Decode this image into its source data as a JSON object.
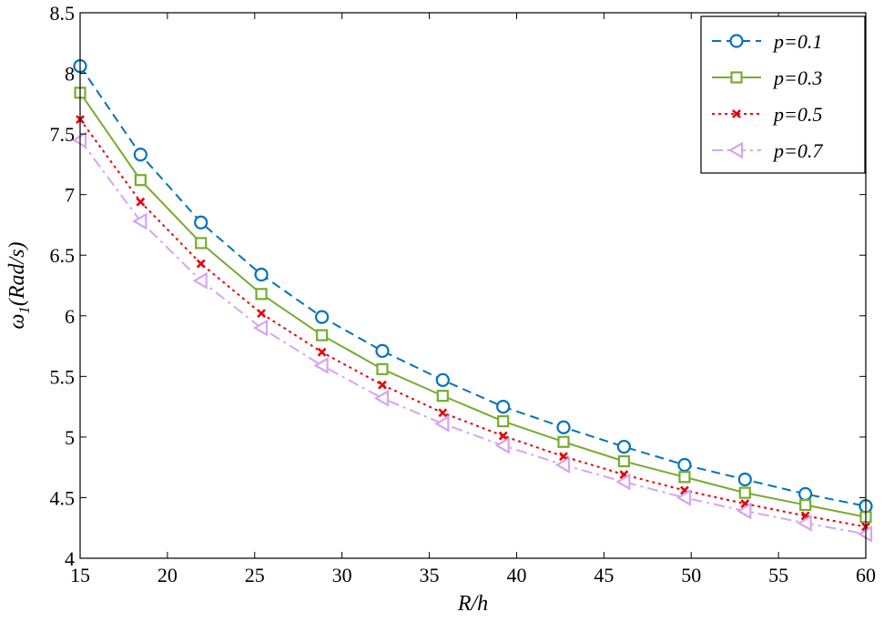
{
  "chart_data": {
    "type": "line",
    "xlabel": "R/h",
    "ylabel": "ω",
    "ylabel_sub": "1",
    "ylabel_unit": "(Rad/s)",
    "xlim": [
      15,
      60
    ],
    "ylim": [
      4,
      8.5
    ],
    "xticks": [
      15,
      20,
      25,
      30,
      35,
      40,
      45,
      50,
      55,
      60
    ],
    "yticks": [
      4,
      4.5,
      5,
      5.5,
      6,
      6.5,
      7,
      7.5,
      8,
      8.5
    ],
    "ytick_labels": [
      "4",
      "4.5",
      "5",
      "5.5",
      "6",
      "6.5",
      "7",
      "7.5",
      "8",
      "8.5"
    ],
    "grid": false,
    "legend_position": "top-right",
    "x": [
      15,
      18.46,
      21.92,
      25.38,
      28.85,
      32.31,
      35.77,
      39.23,
      42.69,
      46.15,
      49.62,
      53.08,
      56.54,
      60
    ],
    "series": [
      {
        "name": "p=0.1",
        "color": "#0072BD",
        "dash": "dashed",
        "marker": "circle",
        "values": [
          8.06,
          7.33,
          6.77,
          6.34,
          5.99,
          5.71,
          5.47,
          5.25,
          5.08,
          4.92,
          4.77,
          4.65,
          4.53,
          4.43
        ]
      },
      {
        "name": "p=0.3",
        "color": "#77AC30",
        "dash": "solid",
        "marker": "square",
        "values": [
          7.84,
          7.12,
          6.6,
          6.18,
          5.84,
          5.56,
          5.34,
          5.13,
          4.96,
          4.8,
          4.67,
          4.54,
          4.44,
          4.34
        ]
      },
      {
        "name": "p=0.5",
        "color": "#E8000B",
        "dash": "dotted",
        "marker": "x",
        "values": [
          7.62,
          6.94,
          6.43,
          6.02,
          5.7,
          5.43,
          5.2,
          5.01,
          4.84,
          4.69,
          4.56,
          4.45,
          4.35,
          4.26
        ]
      },
      {
        "name": "p=0.7",
        "color": "#D7A5EE",
        "dash": "dashdot",
        "marker": "triangle-left",
        "values": [
          7.45,
          6.78,
          6.29,
          5.9,
          5.59,
          5.32,
          5.11,
          4.93,
          4.77,
          4.63,
          4.5,
          4.39,
          4.29,
          4.2
        ]
      }
    ]
  }
}
